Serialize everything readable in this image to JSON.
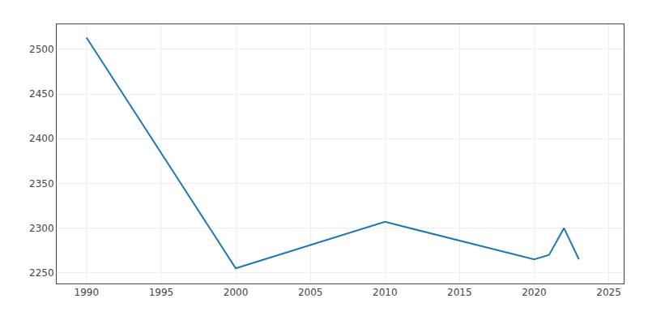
{
  "chart_data": {
    "type": "line",
    "x": [
      1990,
      2000,
      2005,
      2010,
      2020,
      2021,
      2022,
      2023
    ],
    "values": [
      2513,
      2255,
      2281,
      2307,
      2265,
      2270,
      2300,
      2265
    ],
    "xlim": [
      1988,
      2026
    ],
    "ylim": [
      2238,
      2528
    ],
    "xticks": [
      1990,
      1995,
      2000,
      2005,
      2010,
      2015,
      2020,
      2025
    ],
    "yticks": [
      2250,
      2300,
      2350,
      2400,
      2450,
      2500
    ],
    "grid": true
  }
}
